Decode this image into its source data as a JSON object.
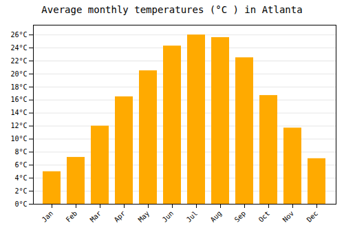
{
  "chart_data": {
    "type": "bar",
    "title": "Average monthly temperatures (°C ) in Atlanta",
    "categories": [
      "Jan",
      "Feb",
      "Mar",
      "Apr",
      "May",
      "Jun",
      "Jul",
      "Aug",
      "Sep",
      "Oct",
      "Nov",
      "Dec"
    ],
    "values": [
      5.0,
      7.2,
      12.0,
      16.5,
      20.5,
      24.3,
      26.0,
      25.6,
      22.5,
      16.7,
      11.7,
      7.0
    ],
    "color": "#FFAA00",
    "ylim": [
      0,
      27.5
    ],
    "yticks": [
      {
        "value": 0,
        "label": "0°C"
      },
      {
        "value": 2,
        "label": "2°C"
      },
      {
        "value": 4,
        "label": "4°C"
      },
      {
        "value": 6,
        "label": "6°C"
      },
      {
        "value": 8,
        "label": "8°C"
      },
      {
        "value": 10,
        "label": "10°C"
      },
      {
        "value": 12,
        "label": "12°C"
      },
      {
        "value": 14,
        "label": "14°C"
      },
      {
        "value": 16,
        "label": "16°C"
      },
      {
        "value": 18,
        "label": "18°C"
      },
      {
        "value": 20,
        "label": "20°C"
      },
      {
        "value": 22,
        "label": "22°C"
      },
      {
        "value": 24,
        "label": "24°C"
      },
      {
        "value": 26,
        "label": "26°C"
      }
    ],
    "grid": true
  }
}
